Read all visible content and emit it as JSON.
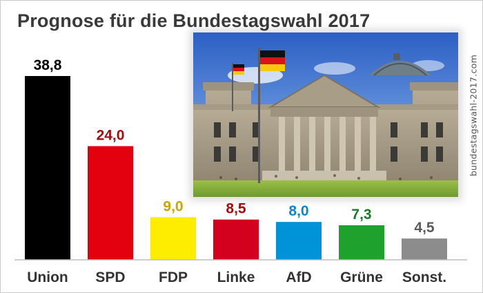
{
  "title": "Prognose für die Bundestagswahl 2017",
  "watermark": "bundestagswahl-2017.com",
  "photo": {
    "subject": "reichstag-building-with-german-flags"
  },
  "chart_data": {
    "type": "bar",
    "categories": [
      "Union",
      "SPD",
      "FDP",
      "Linke",
      "AfD",
      "Grüne",
      "Sonst."
    ],
    "values": [
      38.8,
      24.0,
      9.0,
      8.5,
      8.0,
      7.3,
      4.5
    ],
    "value_labels": [
      "38,8",
      "24,0",
      "9,0",
      "8,5",
      "8,0",
      "7,3",
      "4,5"
    ],
    "bar_colors": [
      "#000000",
      "#e3000f",
      "#ffed00",
      "#d3001e",
      "#0093d8",
      "#1fa12d",
      "#8c8c8c"
    ],
    "value_label_colors": [
      "#000000",
      "#a30d0d",
      "#c9a600",
      "#a30d0d",
      "#0a87c8",
      "#1a7a2a",
      "#5a5a5a"
    ],
    "title": "Prognose für die Bundestagswahl 2017",
    "xlabel": "",
    "ylabel": "",
    "ylim": [
      0,
      38.8
    ],
    "grid": false,
    "legend": "none"
  }
}
